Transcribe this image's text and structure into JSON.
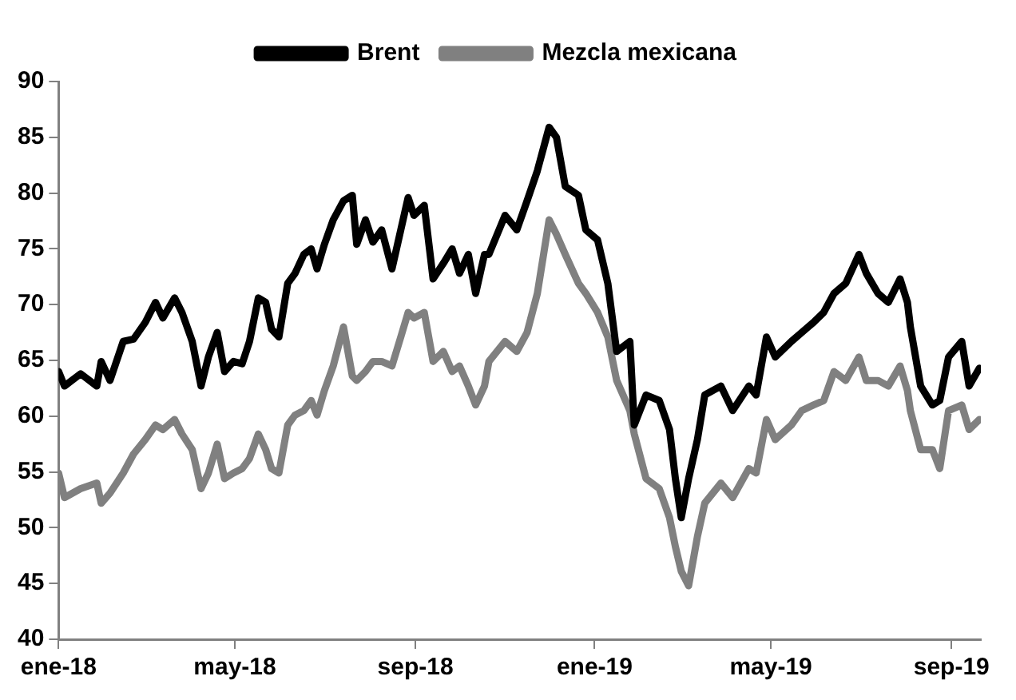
{
  "chart_data": {
    "type": "line",
    "legend": "top",
    "grid": false,
    "marker": "none",
    "line_style": "solid",
    "x": [
      "2018-01-01",
      "2018-01-05",
      "2018-01-16",
      "2018-01-27",
      "2018-01-30",
      "2018-02-05",
      "2018-02-14",
      "2018-02-21",
      "2018-03-01",
      "2018-03-08",
      "2018-03-13",
      "2018-03-21",
      "2018-03-26",
      "2018-04-02",
      "2018-04-08",
      "2018-04-13",
      "2018-04-19",
      "2018-04-24",
      "2018-04-30",
      "2018-05-06",
      "2018-05-11",
      "2018-05-17",
      "2018-05-22",
      "2018-05-26",
      "2018-05-31",
      "2018-06-06",
      "2018-06-11",
      "2018-06-17",
      "2018-06-22",
      "2018-06-26",
      "2018-07-01",
      "2018-07-07",
      "2018-07-14",
      "2018-07-20",
      "2018-07-23",
      "2018-07-29",
      "2018-08-03",
      "2018-08-09",
      "2018-08-16",
      "2018-08-22",
      "2018-08-27",
      "2018-08-31",
      "2018-09-07",
      "2018-09-13",
      "2018-09-20",
      "2018-09-26",
      "2018-10-01",
      "2018-10-07",
      "2018-10-12",
      "2018-10-18",
      "2018-10-21",
      "2018-11-01",
      "2018-11-09",
      "2018-11-16",
      "2018-11-23",
      "2018-12-01",
      "2018-12-06",
      "2018-12-12",
      "2018-12-21",
      "2018-12-26",
      "2019-01-03",
      "2019-01-10",
      "2019-01-16",
      "2019-01-25",
      "2019-01-28",
      "2019-02-05",
      "2019-02-14",
      "2019-02-21",
      "2019-02-25",
      "2019-03-01",
      "2019-03-06",
      "2019-03-12",
      "2019-03-17",
      "2019-03-28",
      "2019-04-05",
      "2019-04-16",
      "2019-04-21",
      "2019-04-28",
      "2019-05-04",
      "2019-05-15",
      "2019-05-22",
      "2019-05-30",
      "2019-06-06",
      "2019-06-13",
      "2019-06-21",
      "2019-06-30",
      "2019-07-05",
      "2019-07-13",
      "2019-07-20",
      "2019-07-28",
      "2019-08-02",
      "2019-08-04",
      "2019-08-11",
      "2019-08-19",
      "2019-08-24",
      "2019-08-30",
      "2019-09-08",
      "2019-09-13",
      "2019-09-20"
    ],
    "series": [
      {
        "name": "Brent",
        "color": "#000000",
        "values": [
          64.0,
          62.7,
          63.8,
          62.7,
          64.9,
          63.2,
          66.7,
          66.9,
          68.4,
          70.2,
          68.8,
          70.6,
          69.3,
          66.7,
          62.7,
          65.3,
          67.5,
          64.0,
          64.9,
          64.7,
          66.7,
          70.6,
          70.2,
          67.8,
          67.1,
          71.9,
          72.8,
          74.5,
          75.0,
          73.2,
          75.4,
          77.6,
          79.3,
          79.8,
          75.4,
          77.6,
          75.6,
          76.7,
          73.2,
          76.7,
          79.6,
          78.0,
          78.9,
          72.3,
          73.7,
          75.0,
          72.8,
          74.5,
          71.0,
          74.5,
          74.5,
          78.0,
          76.7,
          79.3,
          82.0,
          85.9,
          85.0,
          80.6,
          79.8,
          76.7,
          75.8,
          71.9,
          65.8,
          66.7,
          59.2,
          61.9,
          61.4,
          58.8,
          54.4,
          50.9,
          54.4,
          57.9,
          61.9,
          62.7,
          60.5,
          62.7,
          61.9,
          67.1,
          65.3,
          66.7,
          67.5,
          68.4,
          69.3,
          71.0,
          71.9,
          74.5,
          72.8,
          71.0,
          70.2,
          72.3,
          70.2,
          68.0,
          62.7,
          61.0,
          61.4,
          65.3,
          66.7,
          62.7,
          64.3
        ]
      },
      {
        "name": "Mezcla mexicana",
        "color": "#808080",
        "values": [
          54.9,
          52.7,
          53.5,
          54.0,
          52.2,
          53.1,
          54.9,
          56.6,
          57.9,
          59.2,
          58.8,
          59.7,
          58.4,
          57.0,
          53.5,
          54.9,
          57.5,
          54.4,
          54.9,
          55.3,
          56.2,
          58.4,
          57.0,
          55.3,
          54.9,
          59.2,
          60.1,
          60.5,
          61.4,
          60.1,
          62.3,
          64.5,
          68.0,
          63.6,
          63.2,
          64.0,
          64.9,
          64.9,
          64.5,
          67.1,
          69.3,
          68.8,
          69.3,
          64.9,
          65.8,
          64.0,
          64.5,
          62.7,
          61.0,
          62.7,
          64.9,
          66.7,
          65.8,
          67.5,
          71.0,
          77.6,
          76.3,
          74.5,
          71.9,
          71.0,
          69.3,
          67.1,
          63.2,
          60.5,
          58.4,
          54.4,
          53.5,
          50.9,
          48.3,
          46.1,
          44.8,
          49.2,
          52.2,
          54.0,
          52.7,
          55.3,
          54.9,
          59.7,
          57.9,
          59.2,
          60.5,
          61.0,
          61.4,
          64.0,
          63.2,
          65.3,
          63.2,
          63.2,
          62.7,
          64.5,
          62.3,
          60.5,
          57.0,
          57.0,
          55.3,
          60.5,
          61.0,
          58.8,
          59.7
        ]
      }
    ],
    "xlim": [
      "2018-01-01",
      "2019-09-21"
    ],
    "xticks": [
      {
        "value": "2018-01-01",
        "label": "ene-18"
      },
      {
        "value": "2018-05-01",
        "label": "may-18"
      },
      {
        "value": "2018-09-01",
        "label": "sep-18"
      },
      {
        "value": "2019-01-01",
        "label": "ene-19"
      },
      {
        "value": "2019-05-01",
        "label": "may-19"
      },
      {
        "value": "2019-09-01",
        "label": "sep-19"
      }
    ],
    "ylim": [
      40,
      90
    ],
    "yticks": [
      40,
      45,
      50,
      55,
      60,
      65,
      70,
      75,
      80,
      85,
      90
    ]
  }
}
